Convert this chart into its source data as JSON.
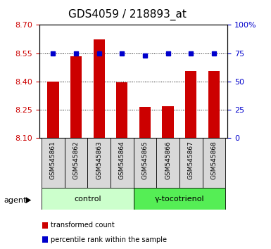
{
  "title": "GDS4059 / 218893_at",
  "samples": [
    "GSM545861",
    "GSM545862",
    "GSM545863",
    "GSM545864",
    "GSM545865",
    "GSM545866",
    "GSM545867",
    "GSM545868"
  ],
  "bar_values": [
    8.4,
    8.535,
    8.625,
    8.395,
    8.265,
    8.27,
    8.455,
    8.455
  ],
  "percentile_values": [
    75,
    75,
    75,
    75,
    73,
    75,
    75,
    75
  ],
  "ylim_left": [
    8.1,
    8.7
  ],
  "ylim_right": [
    0,
    100
  ],
  "yticks_left": [
    8.1,
    8.25,
    8.4,
    8.55,
    8.7
  ],
  "yticks_right": [
    0,
    25,
    50,
    75,
    100
  ],
  "groups": [
    {
      "label": "control",
      "indices": [
        0,
        1,
        2,
        3
      ],
      "color": "#ccffcc"
    },
    {
      "label": "γ-tocotrienol",
      "indices": [
        4,
        5,
        6,
        7
      ],
      "color": "#55ee55"
    }
  ],
  "bar_color": "#cc0000",
  "percentile_color": "#0000cc",
  "bar_width": 0.5,
  "bg_color": "#d8d8d8",
  "agent_label": "agent",
  "legend_bar_label": "transformed count",
  "legend_pct_label": "percentile rank within the sample",
  "title_fontsize": 11,
  "tick_fontsize": 8,
  "left_tick_color": "#cc0000",
  "right_tick_color": "#0000cc"
}
